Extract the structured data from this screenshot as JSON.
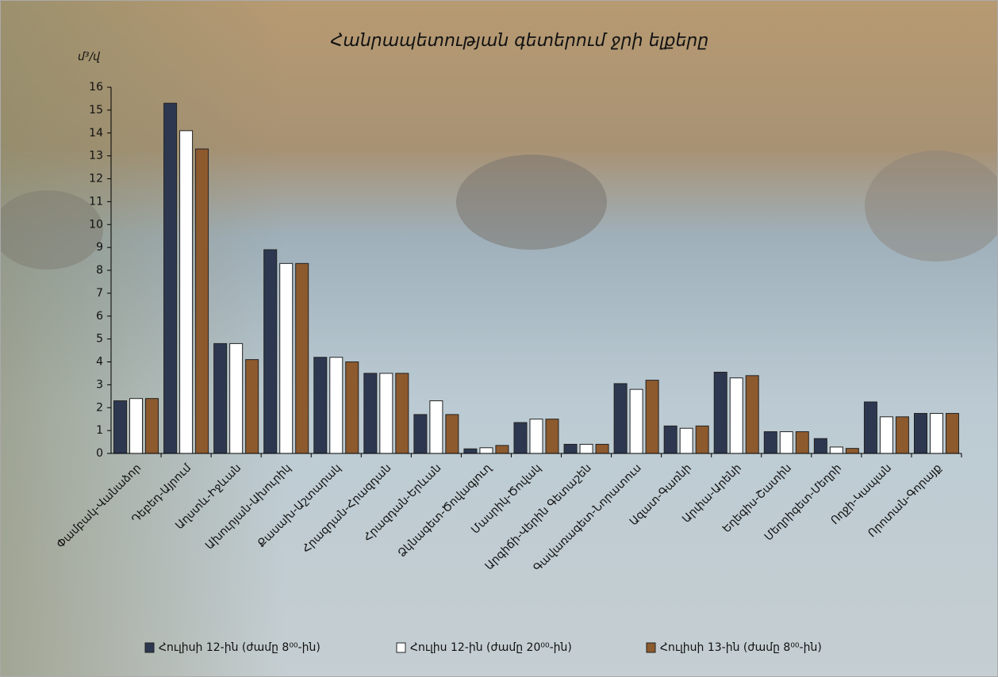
{
  "chart_data": {
    "type": "bar",
    "title": "Հանրապետության գետերում ջրի ելքերը",
    "y_label": "մ³/վ",
    "categories": [
      "Փամբակ-Վանաձոր",
      "Դեբեդ-Այրում",
      "Աղստև-Իջևան",
      "Ախուրյան-Ախուրիկ",
      "Քասախ-Աշտարակ",
      "Հրազդան-Հրազդան",
      "Հրազդան-Երևան",
      "Ձկնագետ-Ծովագյուղ",
      "Մասրիկ-Ծովակ",
      "Արգիճի-Վերին Գետաշեն",
      "Գավառագետ-Նորատուս",
      "Ազատ-Գառնի",
      "Արփա-Արենի",
      "Եղեգիս-Շատին",
      "Մեղրիգետ-Մեղրի",
      "Ողջի-Կապան",
      "Որոտան-Գորայք"
    ],
    "series": [
      {
        "name": "Հուլիսի 12-ին (ժամը 8⁰⁰-ին)",
        "color": "#2d3850",
        "values": [
          2.3,
          15.3,
          4.8,
          8.9,
          4.2,
          3.5,
          1.7,
          0.2,
          1.35,
          0.4,
          3.05,
          1.2,
          3.55,
          0.95,
          0.65,
          2.25,
          1.75
        ]
      },
      {
        "name": "Հուլիս 12-ին (ժամը 20⁰⁰-ին)",
        "color": "#ffffff",
        "values": [
          2.4,
          14.1,
          4.8,
          8.3,
          4.2,
          3.5,
          2.3,
          0.25,
          1.5,
          0.4,
          2.8,
          1.1,
          3.3,
          0.95,
          0.28,
          1.6,
          1.75
        ]
      },
      {
        "name": "Հուլիսի 13-ին (ժամը 8⁰⁰-ին)",
        "color": "#8d5a2e",
        "values": [
          2.4,
          13.3,
          4.1,
          8.3,
          4.0,
          3.5,
          1.7,
          0.35,
          1.5,
          0.4,
          3.2,
          1.2,
          3.4,
          0.95,
          0.22,
          1.6,
          1.75
        ]
      }
    ],
    "ylim": [
      0,
      16
    ],
    "yticks": [
      0,
      1,
      2,
      3,
      4,
      5,
      6,
      7,
      8,
      9,
      10,
      11,
      12,
      13,
      14,
      15,
      16
    ],
    "grid": false,
    "legend": "bottom"
  }
}
